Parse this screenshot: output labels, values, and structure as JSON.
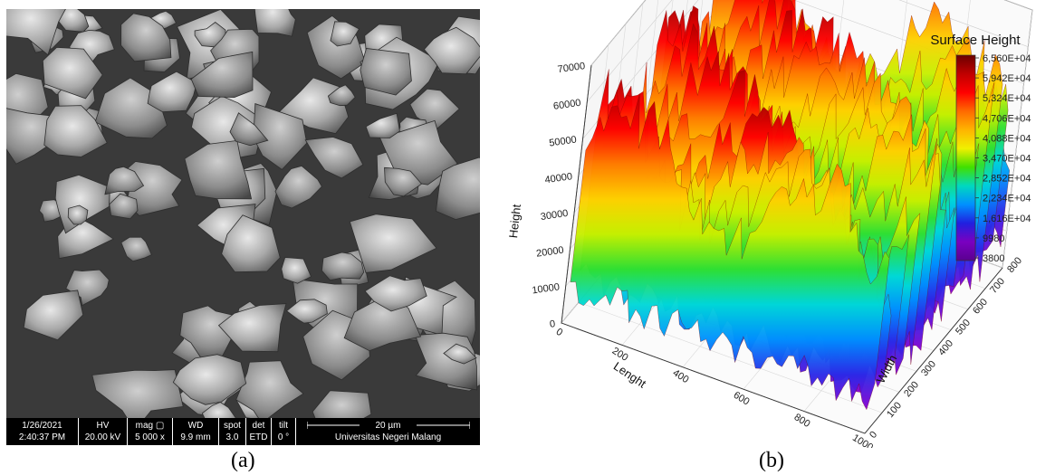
{
  "panels": {
    "left_caption": "(a)",
    "right_caption": "(b)"
  },
  "sem_info": {
    "date": "1/26/2021",
    "time": "2:40:37 PM",
    "hv_label": "HV",
    "hv_value": "20.00 kV",
    "mag_label": "mag ▢",
    "mag_value": "5 000 x",
    "wd_label": "WD",
    "wd_value": "9.9 mm",
    "spot_label": "spot",
    "spot_value": "3.0",
    "det_label": "det",
    "det_value": "ETD",
    "tilt_label": "tilt",
    "tilt_value": "0 °",
    "scale_label": "20 µm",
    "institution": "Universitas Negeri Malang"
  },
  "chart_data": {
    "type": "surface3d",
    "xlabel": "Lenght",
    "ylabel": "Width",
    "zlabel": "Height",
    "xlim": [
      0,
      1000
    ],
    "ylim": [
      0,
      800
    ],
    "zlim": [
      0,
      70000
    ],
    "x_ticks": [
      "0",
      "200",
      "400",
      "600",
      "800",
      "1000"
    ],
    "y_ticks": [
      "0",
      "100",
      "200",
      "300",
      "400",
      "500",
      "600",
      "700",
      "800"
    ],
    "z_ticks": [
      "0",
      "10000",
      "20000",
      "30000",
      "40000",
      "50000",
      "60000",
      "70000"
    ],
    "colorbar": {
      "title": "Surface Height",
      "min": 3800,
      "max": 65600,
      "labels": [
        "6,560E+04",
        "5,942E+04",
        "5,324E+04",
        "4,706E+04",
        "4,088E+04",
        "3,470E+04",
        "2,852E+04",
        "2,234E+04",
        "1,616E+04",
        "9980",
        "3800"
      ],
      "colors": [
        "#6b0000",
        "#c00000",
        "#ff0000",
        "#ff6a00",
        "#ffb400",
        "#f0f000",
        "#40e000",
        "#00d8c0",
        "#0090ff",
        "#2020e0",
        "#7a00c0",
        "#5a0090"
      ]
    }
  }
}
